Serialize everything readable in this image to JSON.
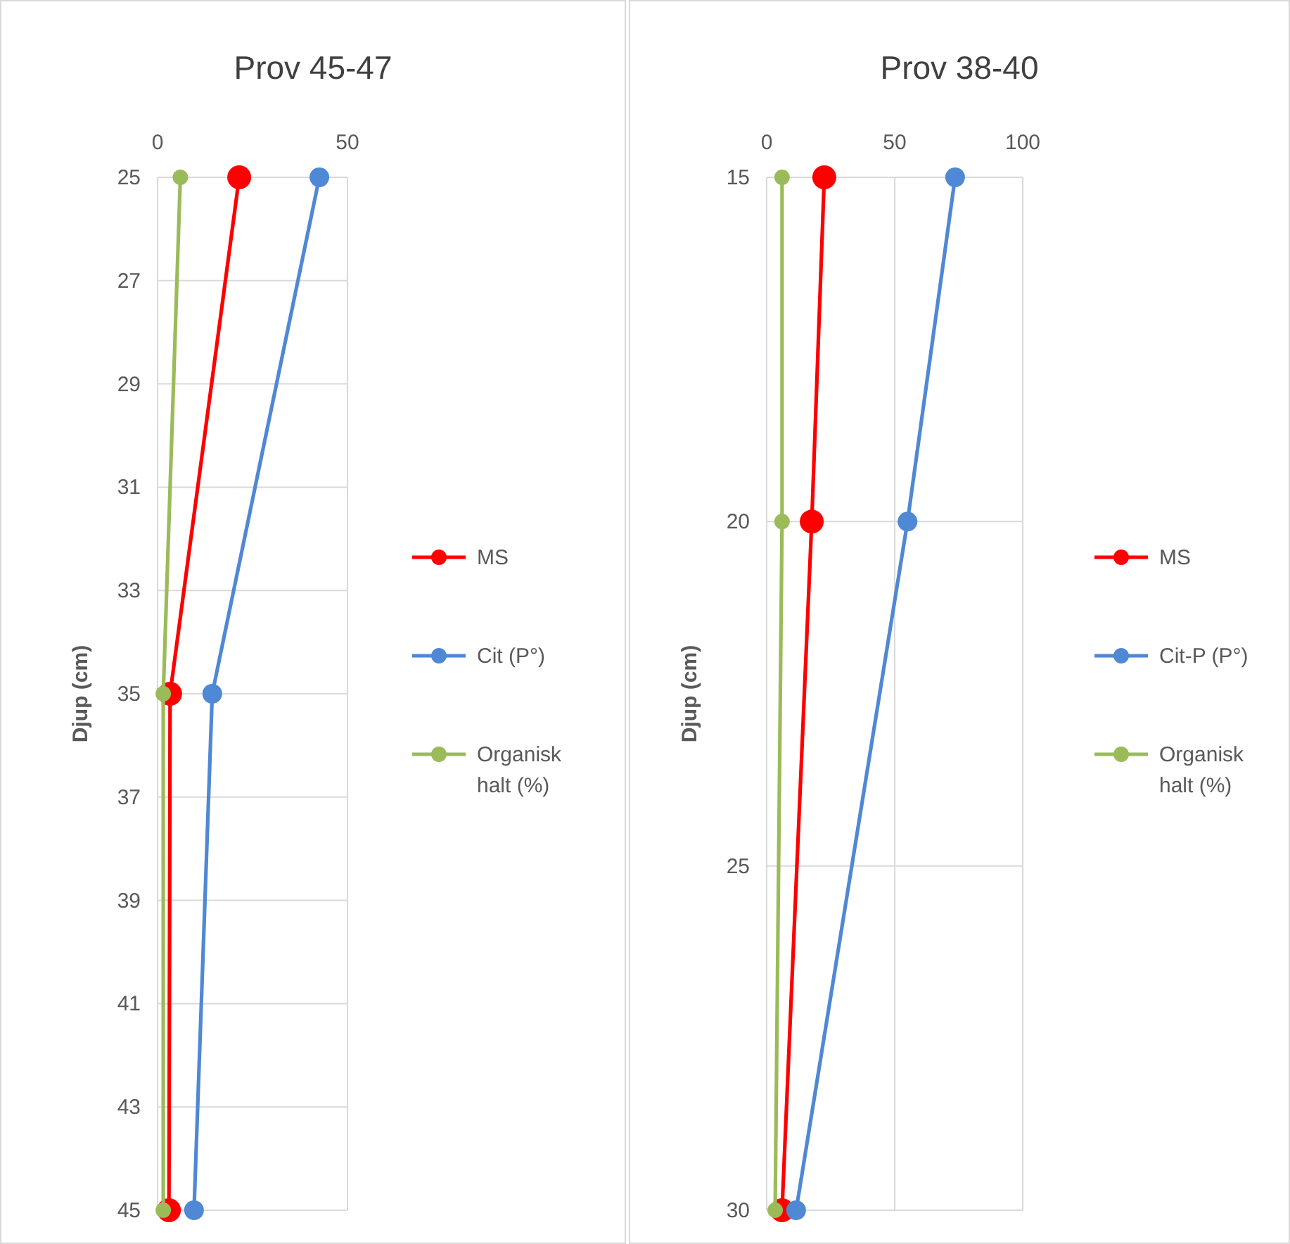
{
  "chart_data": [
    {
      "type": "line",
      "title": "Prov 45-47",
      "ylabel": "Djup (cm)",
      "xlim": [
        0,
        50
      ],
      "xticks": [
        0,
        50
      ],
      "ylim": [
        45,
        25
      ],
      "yticks": [
        25,
        27,
        29,
        31,
        33,
        35,
        37,
        39,
        41,
        43,
        45
      ],
      "grid": true,
      "legend": "right",
      "marker": "circle",
      "line_style": "solid",
      "series": [
        {
          "name": "MS",
          "color": "#ff0000",
          "x": [
            21.5,
            3.3,
            3
          ],
          "values": [
            25,
            35,
            45
          ]
        },
        {
          "name": "Cit (P°)",
          "color": "#4f88d4",
          "x": [
            42.6,
            14.4,
            9.6
          ],
          "values": [
            25,
            35,
            45
          ]
        },
        {
          "name": "Organisk halt (%)",
          "color": "#9bbb59",
          "x": [
            6,
            1.5,
            1.5
          ],
          "values": [
            25,
            35,
            45
          ]
        }
      ]
    },
    {
      "type": "line",
      "title": "Prov 38-40",
      "ylabel": "Djup (cm)",
      "xlim": [
        0,
        100
      ],
      "xticks": [
        0,
        50,
        100
      ],
      "ylim": [
        30,
        15
      ],
      "yticks": [
        15,
        20,
        25,
        30
      ],
      "grid": true,
      "legend": "right",
      "marker": "circle",
      "line_style": "solid",
      "series": [
        {
          "name": "MS",
          "color": "#ff0000",
          "x": [
            22.5,
            17.6,
            6
          ],
          "values": [
            15,
            20,
            30
          ]
        },
        {
          "name": "Cit-P (P°)",
          "color": "#4f88d4",
          "x": [
            73.6,
            55,
            11.5
          ],
          "values": [
            15,
            20,
            30
          ]
        },
        {
          "name": "Organisk halt (%)",
          "color": "#9bbb59",
          "x": [
            6,
            6,
            3.3
          ],
          "values": [
            15,
            20,
            30
          ]
        }
      ]
    }
  ]
}
